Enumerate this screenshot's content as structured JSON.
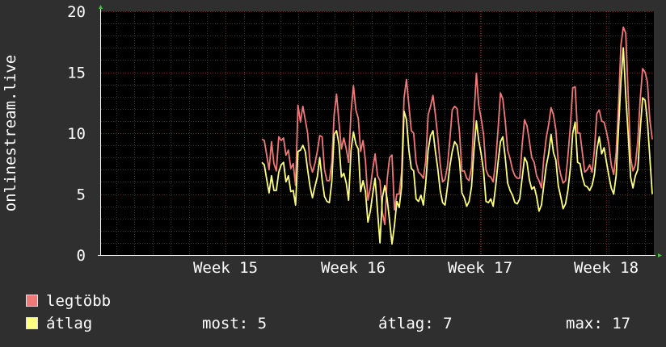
{
  "chart_data": {
    "type": "line",
    "ylabel": "onlinestream.live",
    "ylim": [
      0,
      20
    ],
    "yticks": [
      "0",
      "5",
      "10",
      "15",
      "20"
    ],
    "x_ticks": [
      "Week 15",
      "Week 16",
      "Week 17",
      "Week 18"
    ],
    "grid": true,
    "series": [
      {
        "name": "legtöbb",
        "color": "#f07878",
        "values": [
          9.5,
          9.4,
          8.2,
          7.0,
          9.3,
          7.5,
          6.9,
          9.7,
          9.4,
          9.6,
          8.2,
          8.6,
          7.1,
          7.5,
          5.7,
          12.3,
          10.9,
          12.2,
          11.1,
          10.0,
          7.5,
          6.8,
          7.5,
          8.5,
          9.8,
          9.7,
          7.0,
          6.1,
          6.1,
          7.6,
          11.5,
          13.2,
          10.9,
          8.7,
          9.6,
          8.7,
          7.6,
          11.7,
          13.9,
          11.9,
          11.2,
          8.5,
          9.4,
          7.7,
          4.5,
          5.5,
          7.0,
          8.3,
          6.5,
          6.1,
          3.5,
          2.5,
          6.2,
          8.0,
          8.2,
          3.7,
          5.0,
          5.0,
          6.8,
          12.9,
          14.4,
          12.3,
          10.2,
          10.0,
          7.6,
          6.8,
          6.6,
          6.3,
          7.7,
          11.5,
          12.2,
          13.1,
          11.5,
          9.7,
          7.5,
          6.0,
          6.2,
          7.3,
          9.5,
          11.9,
          12.2,
          12.0,
          10.1,
          6.9,
          6.9,
          6.3,
          6.1,
          7.2,
          11.4,
          14.9,
          12.3,
          11.2,
          9.9,
          7.0,
          6.5,
          6.4,
          6.0,
          7.6,
          10.3,
          13.3,
          12.8,
          11.0,
          8.6,
          7.9,
          7.0,
          6.5,
          6.3,
          6.3,
          9.0,
          11.1,
          10.6,
          9.4,
          8.0,
          7.6,
          6.5,
          6.1,
          5.5,
          7.9,
          9.6,
          10.7,
          12.1,
          11.5,
          10.3,
          7.6,
          6.6,
          5.9,
          6.1,
          8.1,
          10.5,
          13.7,
          13.8,
          10.0,
          10.0,
          8.4,
          6.8,
          7.0,
          7.4,
          6.8,
          8.6,
          11.6,
          11.9,
          11.0,
          10.9,
          10.1,
          9.1,
          7.4,
          6.6,
          8.4,
          12.4,
          17.2,
          18.7,
          18.2,
          13.2,
          8.0,
          6.9,
          7.4,
          9.4,
          12.8,
          15.3,
          15.0,
          14.2,
          11.1,
          9.5
        ]
      },
      {
        "name": "átlag",
        "color": "#ffff80",
        "values": [
          7.6,
          7.4,
          6.2,
          5.1,
          6.5,
          5.3,
          5.3,
          6.8,
          7.4,
          7.6,
          6.0,
          6.5,
          5.2,
          5.3,
          4.1,
          8.5,
          8.6,
          9.0,
          8.5,
          7.0,
          5.6,
          4.7,
          5.6,
          6.4,
          8.0,
          6.2,
          4.8,
          4.4,
          4.3,
          6.0,
          9.9,
          10.2,
          9.1,
          6.4,
          6.7,
          5.9,
          4.5,
          8.6,
          10.1,
          9.1,
          8.7,
          5.2,
          6.1,
          5.2,
          2.7,
          3.6,
          5.0,
          6.3,
          3.6,
          1.0,
          4.7,
          5.7,
          4.6,
          2.8,
          0.9,
          2.4,
          4.4,
          3.9,
          5.6,
          11.8,
          11.1,
          8.6,
          7.1,
          6.9,
          4.6,
          4.4,
          4.9,
          4.1,
          5.9,
          8.6,
          9.8,
          10.2,
          8.5,
          7.1,
          5.3,
          4.3,
          4.1,
          5.6,
          7.3,
          8.5,
          9.3,
          9.0,
          7.7,
          5.1,
          4.7,
          4.0,
          4.4,
          5.6,
          8.6,
          11.0,
          9.4,
          8.3,
          6.9,
          4.4,
          4.3,
          4.6,
          4.0,
          5.6,
          7.6,
          9.3,
          9.7,
          8.0,
          5.9,
          5.3,
          4.9,
          4.3,
          4.2,
          4.6,
          6.3,
          8.0,
          7.6,
          6.2,
          5.4,
          5.6,
          4.8,
          3.6,
          4.1,
          5.7,
          7.3,
          8.3,
          9.9,
          8.4,
          7.8,
          5.7,
          4.8,
          3.8,
          4.2,
          5.3,
          7.1,
          10.0,
          10.9,
          7.6,
          7.5,
          6.4,
          5.7,
          5.6,
          5.3,
          5.7,
          6.6,
          8.6,
          9.7,
          8.3,
          8.8,
          7.6,
          6.5,
          5.5,
          5.0,
          6.5,
          10.4,
          14.2,
          17.0,
          13.1,
          9.9,
          6.4,
          5.5,
          6.5,
          7.0,
          10.3,
          12.9,
          12.7,
          11.0,
          8.0,
          5.0
        ]
      }
    ]
  },
  "legend": {
    "max_label": "legtöbb",
    "avg_label": "átlag"
  },
  "stats": {
    "now": "most: 5",
    "avg": "átlag: 7",
    "max": "max: 17"
  }
}
